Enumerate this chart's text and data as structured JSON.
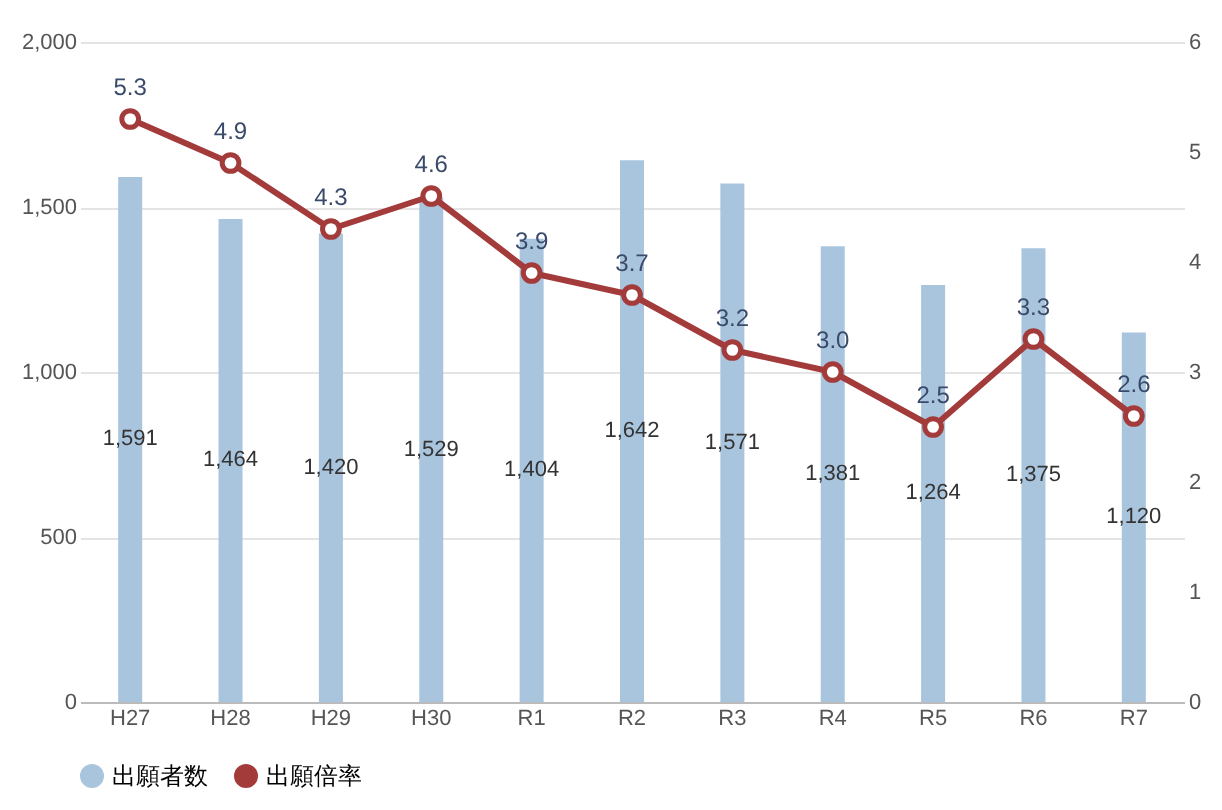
{
  "chart_data": {
    "type": "bar",
    "categories": [
      "H27",
      "H28",
      "H29",
      "H30",
      "R1",
      "R2",
      "R3",
      "R4",
      "R5",
      "R6",
      "R7"
    ],
    "series": [
      {
        "name": "出願者数",
        "color": "#a9c4dd",
        "values": [
          1591,
          1464,
          1420,
          1529,
          1404,
          1642,
          1571,
          1381,
          1264,
          1375,
          1120
        ],
        "value_labels": [
          "1,591",
          "1,464",
          "1,420",
          "1,529",
          "1,404",
          "1,642",
          "1,571",
          "1,381",
          "1,264",
          "1,375",
          "1,120"
        ]
      },
      {
        "name": "出願倍率",
        "type": "line",
        "axis": "y2",
        "color": "#a33b3b",
        "values": [
          5.3,
          4.9,
          4.3,
          4.6,
          3.9,
          3.7,
          3.2,
          3.0,
          2.5,
          3.3,
          2.6
        ],
        "value_labels": [
          "5.3",
          "4.9",
          "4.3",
          "4.6",
          "3.9",
          "3.7",
          "3.2",
          "3.0",
          "2.5",
          "3.3",
          "2.6"
        ]
      }
    ],
    "ylim": [
      0,
      2000
    ],
    "yticks": [
      0,
      {
        "value": 500,
        "label": "500"
      },
      {
        "value": 1000,
        "label": "1,000"
      },
      {
        "value": 1500,
        "label": "1,500"
      },
      {
        "value": 2000,
        "label": "2,000"
      }
    ],
    "y2lim": [
      0,
      6
    ],
    "y2ticks": [
      0,
      1,
      2,
      3,
      4,
      5,
      6
    ],
    "grid": "y",
    "legend": "bottom",
    "marker": "circle",
    "line_style": "solid"
  }
}
